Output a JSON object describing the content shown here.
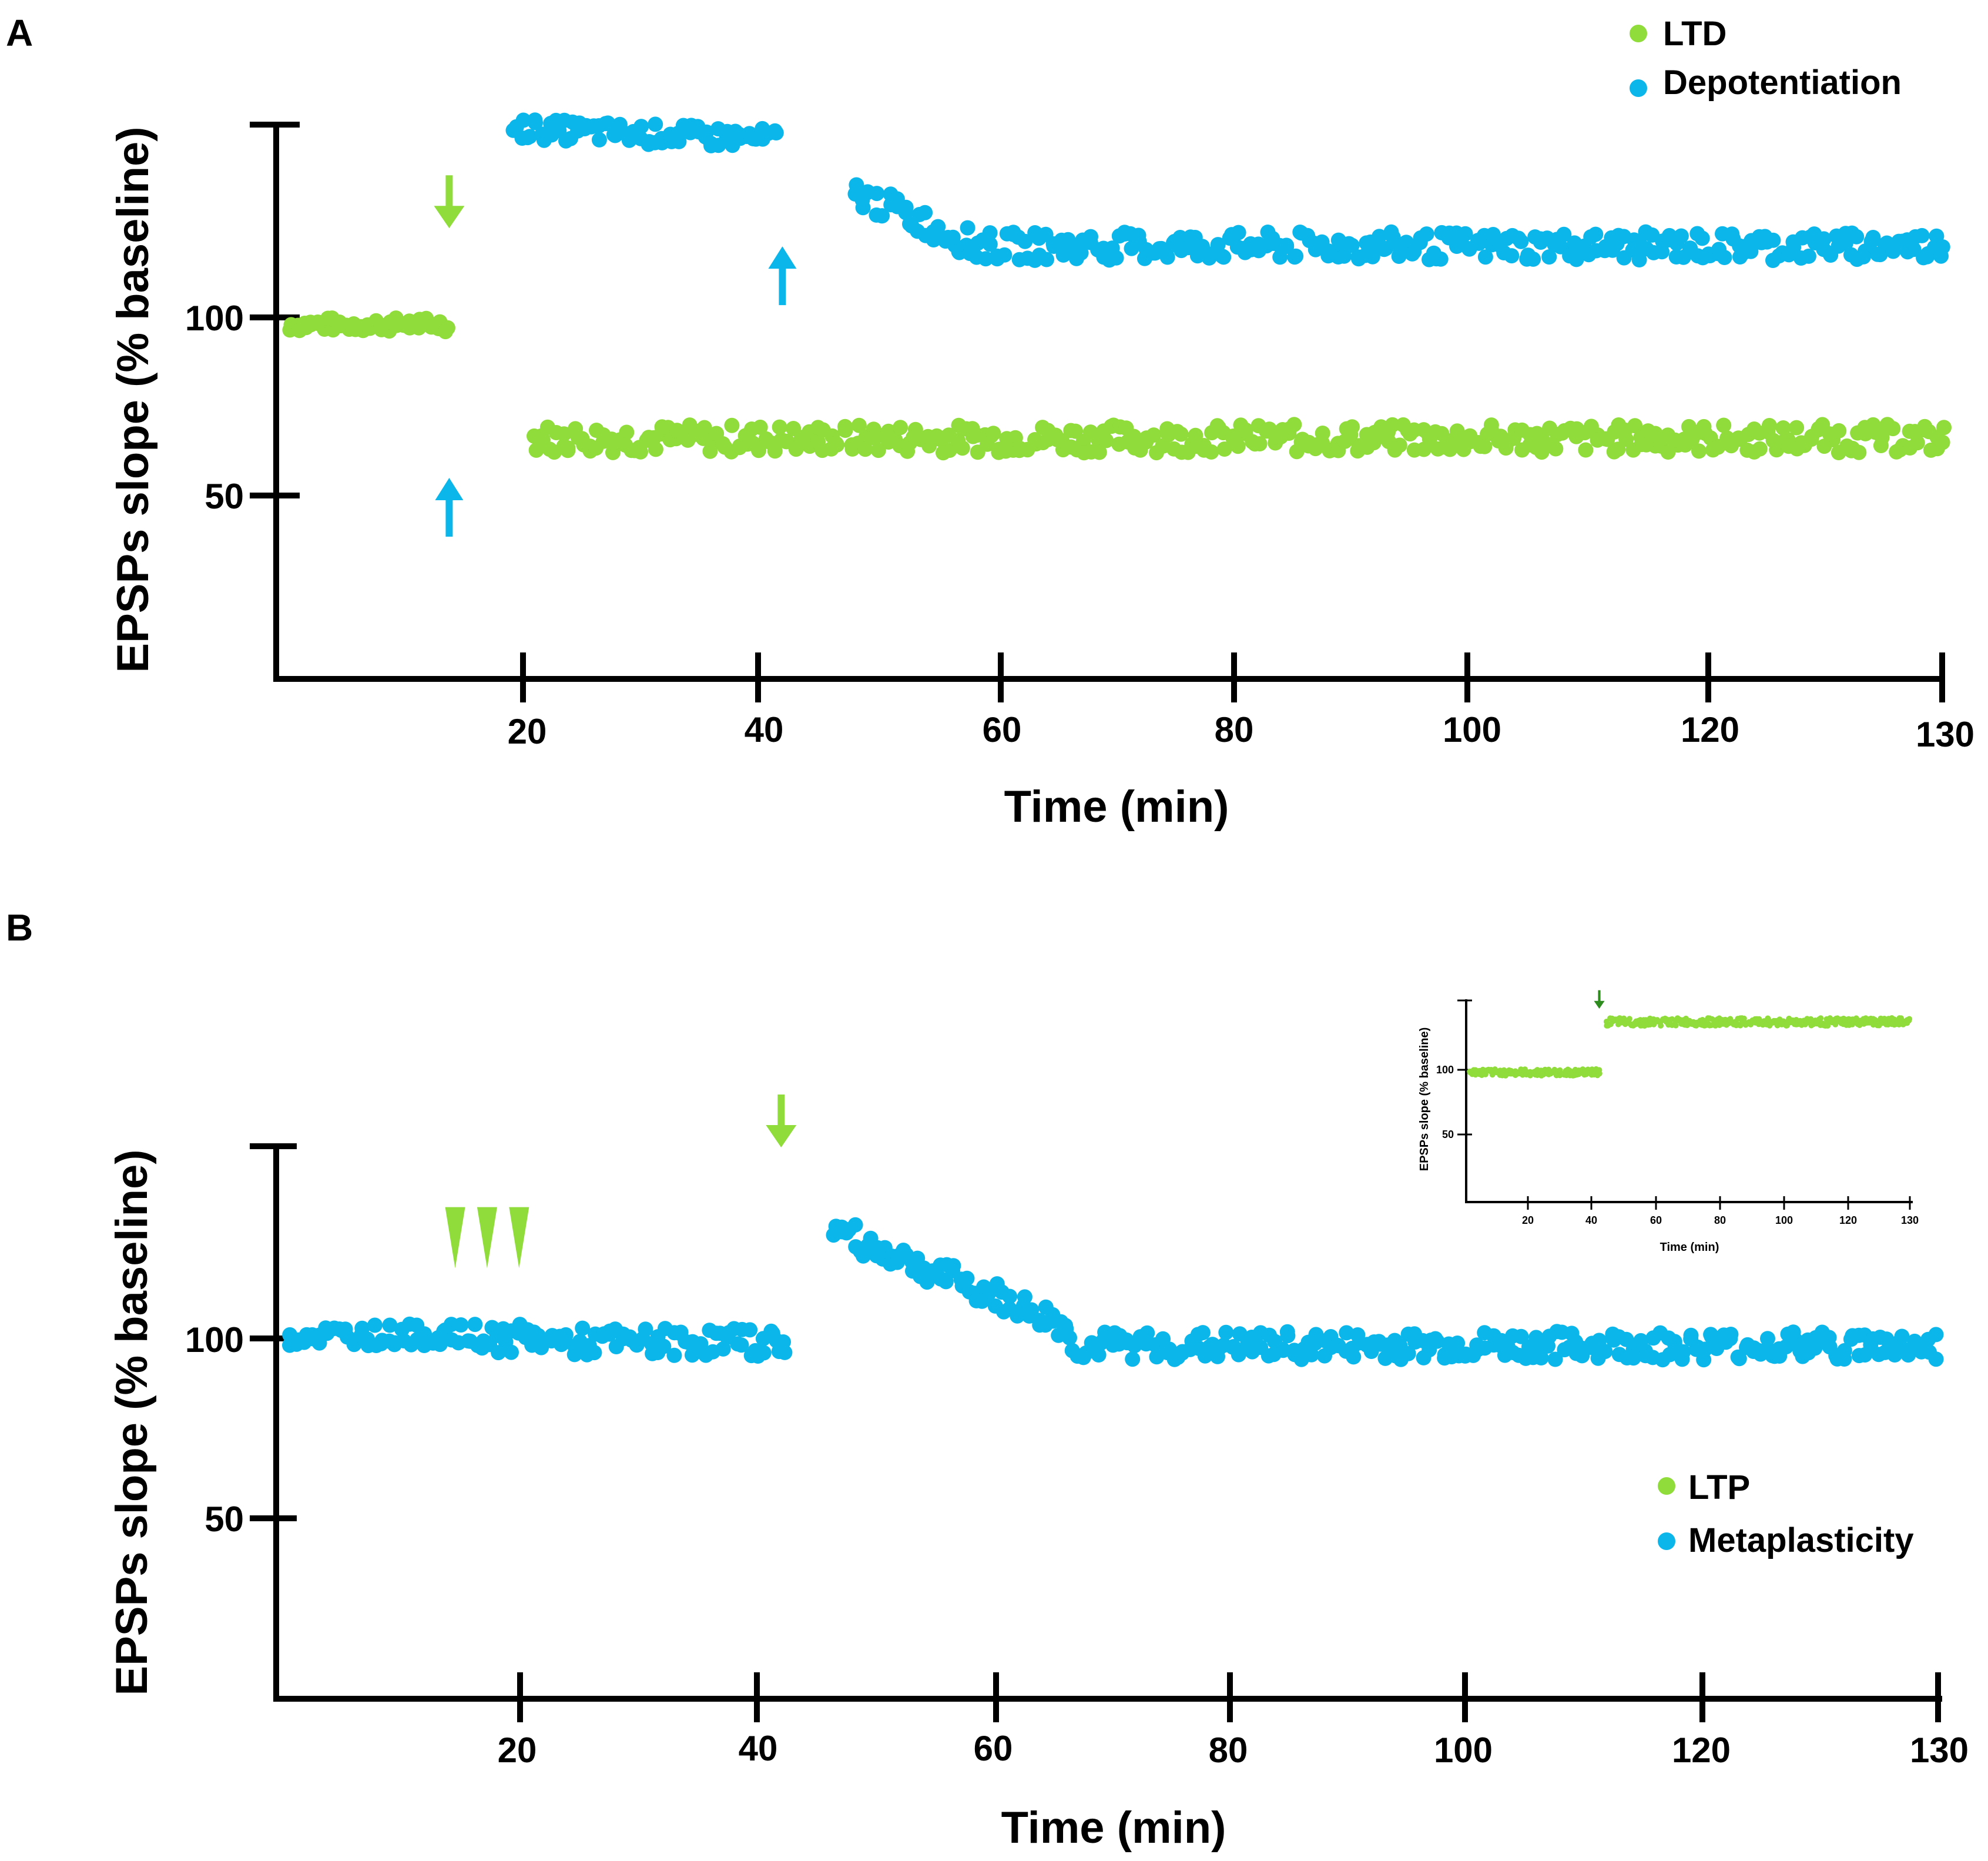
{
  "colors": {
    "green": "#8fdc3a",
    "blue": "#0ab6ea",
    "axis": "#000000",
    "dark_green": "#2e8b1e"
  },
  "chart_data": [
    {
      "panel": "A",
      "type": "scatter",
      "xlabel": "Time (min)",
      "ylabel": "EPSPs slope (% baseline)",
      "xlim": [
        0,
        130
      ],
      "ylim": [
        0,
        155
      ],
      "xticks": [
        20,
        40,
        60,
        80,
        100,
        120,
        130
      ],
      "yticks": [
        50,
        100
      ],
      "legend": {
        "position": "top-right",
        "items": [
          {
            "label": "LTD",
            "color": "green"
          },
          {
            "label": "Depotentiation",
            "color": "blue"
          }
        ]
      },
      "series": [
        {
          "name": "LTD",
          "color": "green",
          "segments": [
            {
              "x0": 1,
              "x1": 13.5,
              "y0": 98,
              "y1": 98,
              "noise": 2
            },
            {
              "x0": 20,
              "x1": 130,
              "y0": 66,
              "y1": 66,
              "noise": 4
            }
          ]
        },
        {
          "name": "Depotentiation",
          "color": "blue",
          "segments": [
            {
              "x0": 18.5,
              "x1": 39,
              "y0": 153,
              "y1": 150,
              "noise": 3
            },
            {
              "x0": 45,
              "x1": 54,
              "y0": 135,
              "y1": 121,
              "noise": 4
            },
            {
              "x0": 54,
              "x1": 130,
              "y0": 120,
              "y1": 120,
              "noise": 4
            }
          ]
        }
      ],
      "markers": [
        {
          "type": "arrow-down",
          "x": 13.5,
          "y": 130,
          "color": "green"
        },
        {
          "type": "arrow-up",
          "x": 13.5,
          "y": 50,
          "color": "blue"
        },
        {
          "type": "arrow-up",
          "x": 39.5,
          "y": 115,
          "color": "blue"
        }
      ]
    },
    {
      "panel": "B",
      "type": "scatter",
      "xlabel": "Time (min)",
      "ylabel": "EPSPs slope (% baseline)",
      "xlim": [
        0,
        130
      ],
      "ylim": [
        0,
        155
      ],
      "xticks": [
        20,
        40,
        60,
        80,
        100,
        120,
        130
      ],
      "yticks": [
        50,
        100
      ],
      "legend": {
        "position": "bottom-right",
        "items": [
          {
            "label": "LTP",
            "color": "green"
          },
          {
            "label": "Metaplasticity",
            "color": "blue"
          }
        ]
      },
      "series": [
        {
          "name": "Metaplasticity",
          "color": "blue",
          "segments": [
            {
              "x0": 1,
              "x1": 14.5,
              "y0": 101,
              "y1": 101,
              "noise": 3
            },
            {
              "x0": 15,
              "x1": 21,
              "y0": 100,
              "y1": 100,
              "noise": 4
            },
            {
              "x0": 21.5,
              "x1": 40,
              "y0": 99,
              "y1": 99,
              "noise": 4
            },
            {
              "x0": 43.5,
              "x1": 62,
              "y0": 130,
              "y1": 103,
              "noise": 4
            },
            {
              "x0": 62,
              "x1": 130,
              "y0": 98,
              "y1": 98,
              "noise": 4
            }
          ]
        }
      ],
      "markers": [
        {
          "type": "arrowhead",
          "x": 14,
          "y": 128,
          "color": "green"
        },
        {
          "type": "arrowhead",
          "x": 16.5,
          "y": 128,
          "color": "green"
        },
        {
          "type": "arrowhead",
          "x": 19,
          "y": 128,
          "color": "green"
        },
        {
          "type": "arrow-down",
          "x": 39.5,
          "y": 158,
          "color": "green"
        }
      ],
      "inset": {
        "type": "scatter",
        "xlabel": "Time (min)",
        "ylabel": "EPSPs slope (% baseline)",
        "xlim": [
          0,
          130
        ],
        "ylim": [
          0,
          155
        ],
        "xticks": [
          20,
          40,
          60,
          80,
          100,
          120,
          130
        ],
        "yticks": [
          50,
          100
        ],
        "series": [
          {
            "name": "LTP",
            "color": "green",
            "segments": [
              {
                "x0": 1,
                "x1": 39,
                "y0": 98,
                "y1": 98,
                "noise": 2.5
              },
              {
                "x0": 41,
                "x1": 130,
                "y0": 137,
                "y1": 137,
                "noise": 3
              }
            ]
          }
        ],
        "markers": [
          {
            "type": "arrow-down",
            "x": 39,
            "y": 152,
            "color": "dark_green"
          }
        ]
      }
    }
  ]
}
